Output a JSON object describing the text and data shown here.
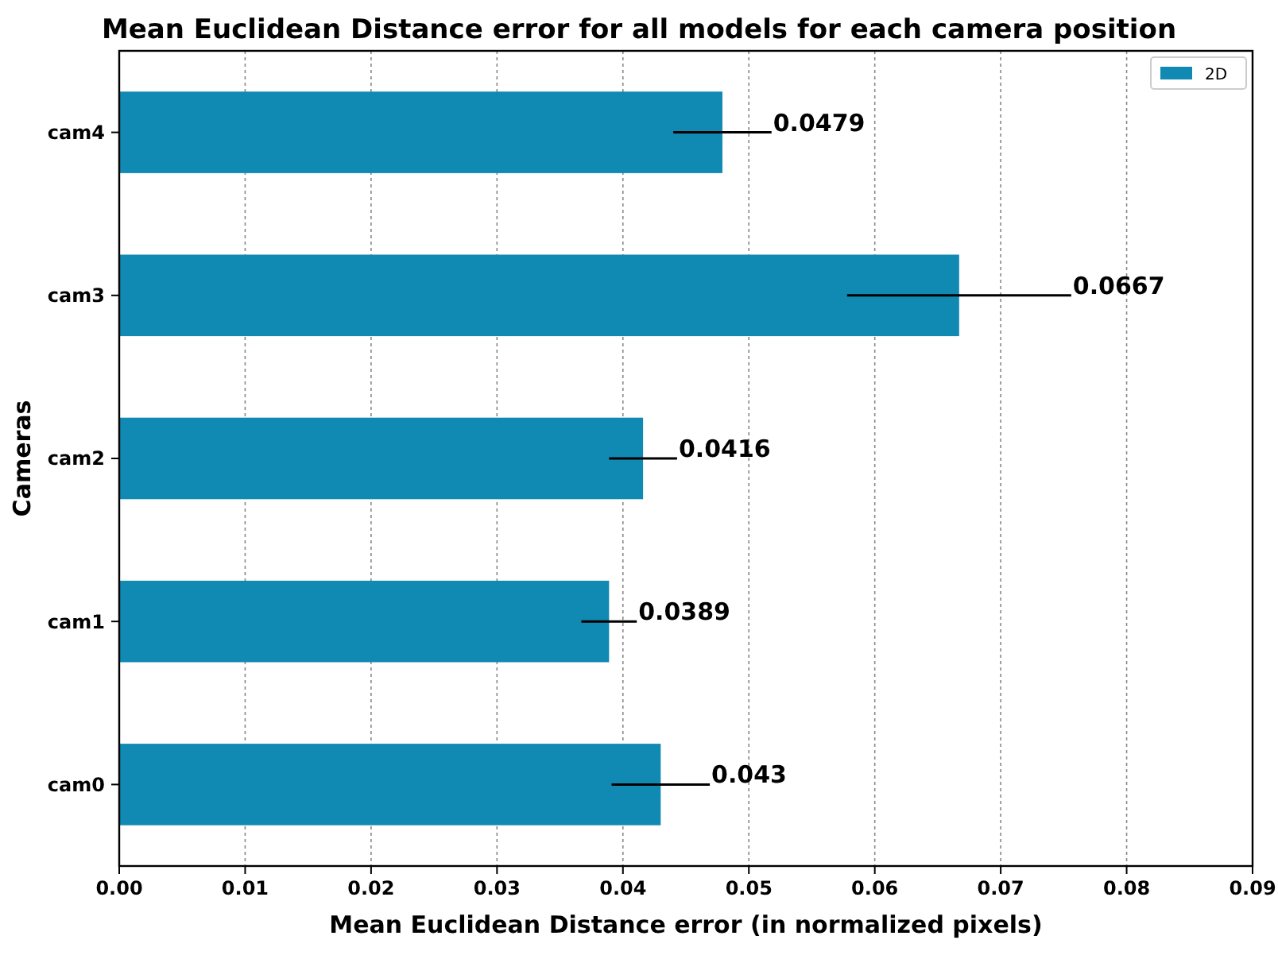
{
  "chart_data": {
    "type": "bar",
    "orientation": "horizontal",
    "title": "Mean Euclidean Distance error for all models for each camera position",
    "xlabel": "Mean Euclidean Distance error (in normalized pixels)",
    "ylabel": "Cameras",
    "categories": [
      "cam4",
      "cam3",
      "cam2",
      "cam1",
      "cam0"
    ],
    "series": [
      {
        "name": "2D",
        "color": "#1089b3",
        "values": [
          0.0479,
          0.0667,
          0.0416,
          0.0389,
          0.043
        ],
        "errors": [
          0.0039,
          0.0089,
          0.0027,
          0.0022,
          0.0039
        ],
        "value_labels": [
          "0.0479",
          null,
          "0.0416",
          "0.0389",
          "0.043"
        ]
      }
    ],
    "annotations": [
      {
        "text": "0.0667",
        "x": 0.0756,
        "y": "cam3"
      }
    ],
    "xlim": [
      0,
      0.09
    ],
    "xticks": [
      {
        "value": 0,
        "label": "0.00"
      },
      {
        "value": 0.01,
        "label": "0.01"
      },
      {
        "value": 0.02,
        "label": "0.02"
      },
      {
        "value": 0.03,
        "label": "0.03"
      },
      {
        "value": 0.04,
        "label": "0.04"
      },
      {
        "value": 0.05,
        "label": "0.05"
      },
      {
        "value": 0.06,
        "label": "0.06"
      },
      {
        "value": 0.07,
        "label": "0.07"
      },
      {
        "value": 0.08,
        "label": "0.08"
      },
      {
        "value": 0.09,
        "label": "0.09"
      }
    ],
    "grid": "x",
    "legend": "top right"
  }
}
